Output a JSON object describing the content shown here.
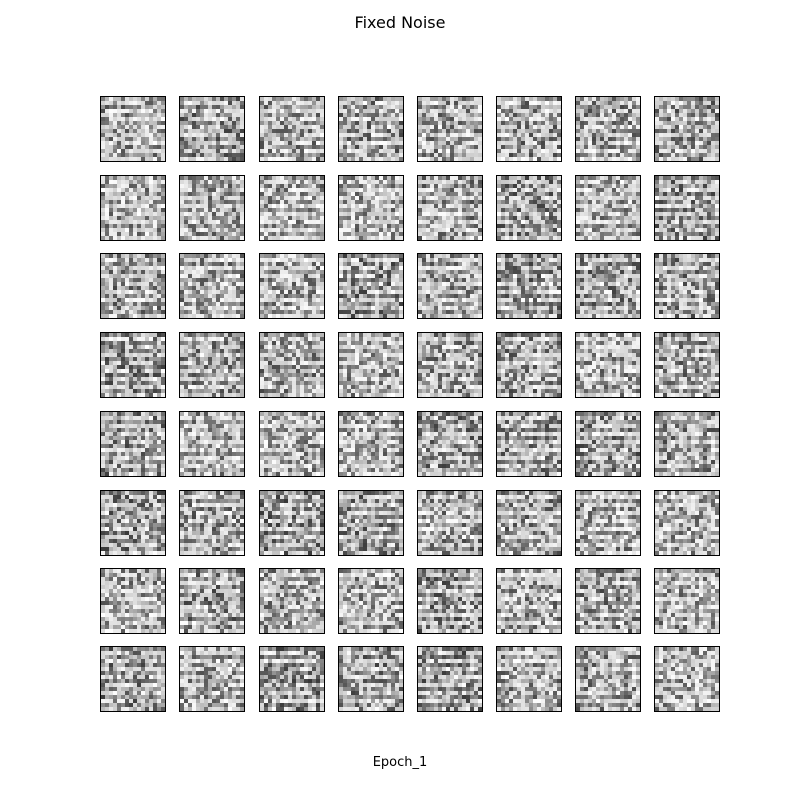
{
  "figure": {
    "title": "Fixed Noise",
    "xlabel": "Epoch_1"
  },
  "grid": {
    "rows": 8,
    "cols": 8,
    "tile_content": "grayscale random noise image"
  }
}
